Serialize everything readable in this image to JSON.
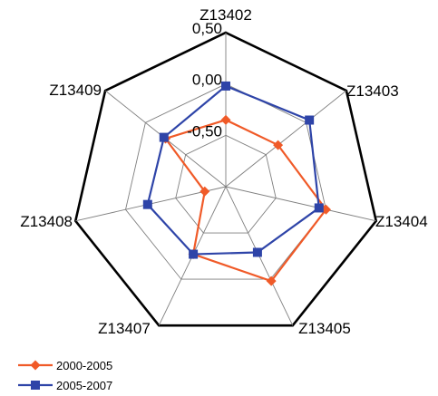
{
  "chart_data": {
    "type": "radar",
    "title": "",
    "axes": [
      "Z13402",
      "Z13403",
      "Z13404",
      "Z13405",
      "Z13407",
      "Z13408",
      "Z13409"
    ],
    "rlim": [
      -1.0,
      0.5
    ],
    "ticks": [
      -1.0,
      -0.5,
      0.0,
      0.5
    ],
    "tick_labels": [
      "",
      "-0,50",
      "0,00",
      "0,50"
    ],
    "grid": true,
    "legend_position": "bottom-left",
    "series": [
      {
        "name": "2000-2005",
        "color": "#f05a28",
        "marker": "diamond",
        "values": [
          -0.35,
          -0.35,
          0.0,
          0.02,
          -0.27,
          -0.79,
          -0.25
        ]
      },
      {
        "name": "2005-2007",
        "color": "#2e44a8",
        "marker": "square",
        "values": [
          -0.02,
          0.04,
          -0.07,
          -0.29,
          -0.27,
          -0.22,
          -0.23
        ]
      }
    ]
  }
}
